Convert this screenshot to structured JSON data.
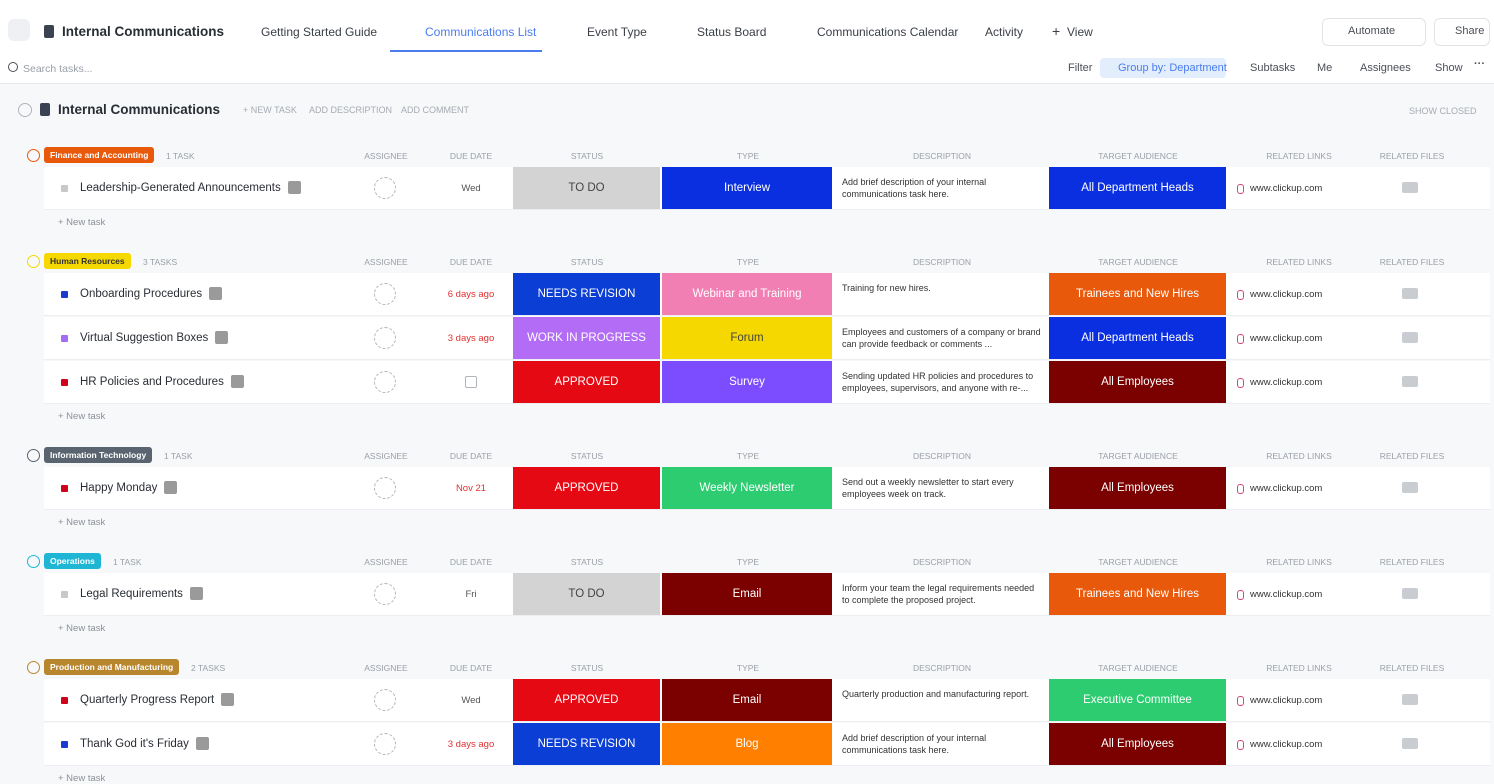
{
  "topbar": {
    "space": "Internal Communications",
    "tabs": [
      "Getting Started Guide",
      "Communications List",
      "Event Type",
      "Status Board",
      "Communications Calendar",
      "Activity",
      "View"
    ],
    "automate": "Automate",
    "share": "Share"
  },
  "toolbar": {
    "search_placeholder": "Search tasks...",
    "filter": "Filter",
    "group_by": "Group by: Department",
    "subtasks": "Subtasks",
    "me": "Me",
    "assignees": "Assignees",
    "show": "Show"
  },
  "list": {
    "title": "Internal Communications",
    "new_task": "+ NEW TASK",
    "add_description": "ADD DESCRIPTION",
    "add_comment": "ADD COMMENT",
    "show_closed": "SHOW CLOSED",
    "add_task": "+ New task"
  },
  "columns": [
    "ASSIGNEE",
    "DUE DATE",
    "STATUS",
    "TYPE",
    "DESCRIPTION",
    "TARGET AUDIENCE",
    "RELATED LINKS",
    "RELATED FILES"
  ],
  "groups": [
    {
      "name": "Finance and Accounting",
      "color": "#e8590c",
      "count": "1 TASK",
      "tasks": [
        {
          "name": "Leadership-Generated Announcements",
          "color": "#c8c8c8",
          "due": "Wed",
          "due_color": "#555555",
          "status": {
            "label": "TO DO",
            "color": "#d3d3d3"
          },
          "type": {
            "label": "Interview",
            "color": "#0a2fe0"
          },
          "description": "Add brief description of your internal communications task here.",
          "audience": {
            "label": "All Department Heads",
            "color": "#0a2fe0"
          },
          "link": "www.clickup.com"
        }
      ]
    },
    {
      "name": "Human Resources",
      "color": "#f5d800",
      "count": "3 TASKS",
      "tasks": [
        {
          "name": "Onboarding Procedures",
          "color": "#1a3bd1",
          "due": "6 days ago",
          "due_color": "#e03131",
          "status": {
            "label": "NEEDS REVISION",
            "color": "#0b3ed4"
          },
          "type": {
            "label": "Webinar and Training",
            "color": "#f27fb3"
          },
          "description": "Training for new hires.",
          "audience": {
            "label": "Trainees and New Hires",
            "color": "#e8590c"
          },
          "link": "www.clickup.com"
        },
        {
          "name": "Virtual Suggestion Boxes",
          "color": "#a36cf5",
          "due": "3 days ago",
          "due_color": "#e03131",
          "status": {
            "label": "WORK IN PROGRESS",
            "color": "#b36cf5"
          },
          "type": {
            "label": "Forum",
            "color": "#f5d800"
          },
          "description": "Employees and customers of a company or brand can provide feedback or comments ...",
          "audience": {
            "label": "All Department Heads",
            "color": "#0a2fe0"
          },
          "link": "www.clickup.com"
        },
        {
          "name": "HR Policies and Procedures",
          "color": "#d0021b",
          "due": null,
          "status": {
            "label": "APPROVED",
            "color": "#e50914"
          },
          "type": {
            "label": "Survey",
            "color": "#7c4dff"
          },
          "description": "Sending updated HR policies and procedures to employees, supervisors, and anyone with re-...",
          "audience": {
            "label": "All Employees",
            "color": "#7b0000"
          },
          "link": "www.clickup.com"
        }
      ]
    },
    {
      "name": "Information Technology",
      "color": "#5a6470",
      "count": "1 TASK",
      "tasks": [
        {
          "name": "Happy Monday",
          "color": "#d0021b",
          "due": "Nov 21",
          "due_color": "#e03131",
          "status": {
            "label": "APPROVED",
            "color": "#e50914"
          },
          "type": {
            "label": "Weekly Newsletter",
            "color": "#2ecc71"
          },
          "description": "Send out a weekly newsletter to start every employees week on track.",
          "audience": {
            "label": "All Employees",
            "color": "#7b0000"
          },
          "link": "www.clickup.com"
        }
      ]
    },
    {
      "name": "Operations",
      "color": "#1fb6d6",
      "count": "1 TASK",
      "tasks": [
        {
          "name": "Legal Requirements",
          "color": "#c8c8c8",
          "due": "Fri",
          "due_color": "#555555",
          "status": {
            "label": "TO DO",
            "color": "#d3d3d3"
          },
          "type": {
            "label": "Email",
            "color": "#7b0000"
          },
          "description": "Inform your team the legal requirements needed to complete the proposed project.",
          "audience": {
            "label": "Trainees and New Hires",
            "color": "#e8590c"
          },
          "link": "www.clickup.com"
        }
      ]
    },
    {
      "name": "Production and Manufacturing",
      "color": "#b8862d",
      "count": "2 TASKS",
      "tasks": [
        {
          "name": "Quarterly Progress Report",
          "color": "#d0021b",
          "due": "Wed",
          "due_color": "#555555",
          "status": {
            "label": "APPROVED",
            "color": "#e50914"
          },
          "type": {
            "label": "Email",
            "color": "#7b0000"
          },
          "description": "Quarterly production and manufacturing report.",
          "audience": {
            "label": "Executive Committee",
            "color": "#2ecc71"
          },
          "link": "www.clickup.com"
        },
        {
          "name": "Thank God it's Friday",
          "color": "#1a3bd1",
          "due": "3 days ago",
          "due_color": "#e03131",
          "status": {
            "label": "NEEDS REVISION",
            "color": "#0b3ed4"
          },
          "type": {
            "label": "Blog",
            "color": "#ff7f00"
          },
          "description": "Add brief description of your internal communications task here.",
          "audience": {
            "label": "All Employees",
            "color": "#7b0000"
          },
          "link": "www.clickup.com"
        }
      ]
    }
  ]
}
